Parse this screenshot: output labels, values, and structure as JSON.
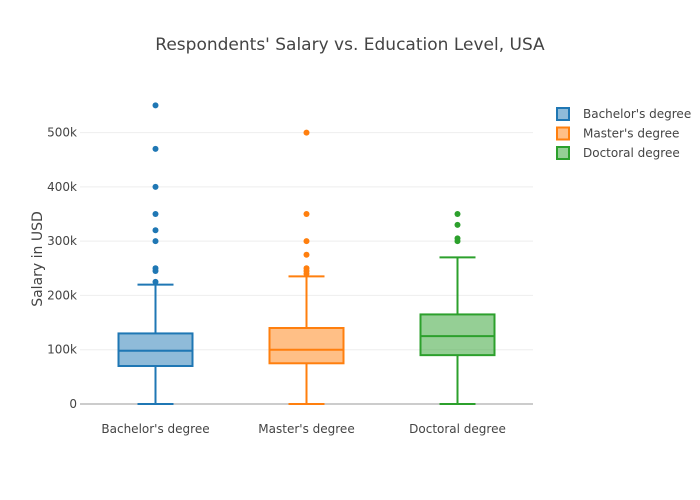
{
  "chart_data": {
    "type": "box",
    "title": "Respondents' Salary vs. Education Level, USA",
    "xlabel": "",
    "ylabel": "Salary in USD",
    "ylim": [
      0,
      560000
    ],
    "ytick_values": [
      0,
      100000,
      200000,
      300000,
      400000,
      500000
    ],
    "ytick_labels": [
      "0",
      "100k",
      "200k",
      "300k",
      "400k",
      "500k"
    ],
    "grid": true,
    "legend_position": "top-right",
    "categories": [
      "Bachelor's degree",
      "Master's degree",
      "Doctoral degree"
    ],
    "series": [
      {
        "name": "Bachelor's degree",
        "color": "#1f77b4",
        "fill": "rgba(31,119,180,0.5)",
        "min": 0,
        "q1": 70000,
        "median": 98000,
        "q3": 130000,
        "max": 220000,
        "outliers": [
          225000,
          245000,
          250000,
          300000,
          320000,
          350000,
          400000,
          470000,
          550000
        ]
      },
      {
        "name": "Master's degree",
        "color": "#ff7f0e",
        "fill": "rgba(255,127,14,0.5)",
        "min": 0,
        "q1": 75000,
        "median": 100000,
        "q3": 140000,
        "max": 235000,
        "outliers": [
          240000,
          245000,
          250000,
          275000,
          300000,
          350000,
          500000
        ]
      },
      {
        "name": "Doctoral degree",
        "color": "#2ca02c",
        "fill": "rgba(44,160,44,0.5)",
        "min": 0,
        "q1": 90000,
        "median": 125000,
        "q3": 165000,
        "max": 270000,
        "outliers": [
          300000,
          305000,
          330000,
          350000
        ]
      }
    ]
  }
}
